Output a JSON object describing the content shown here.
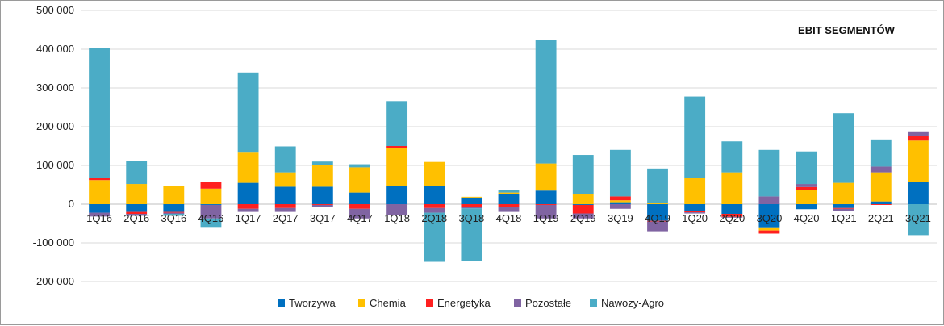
{
  "chart_data": {
    "type": "bar",
    "stacked": true,
    "title": "EBIT SEGMENTÓW",
    "categories": [
      "1Q16",
      "2Q16",
      "3Q16",
      "4Q16",
      "1Q17",
      "2Q17",
      "3Q17",
      "4Q17",
      "1Q18",
      "2Q18",
      "3Q18",
      "4Q18",
      "1Q19",
      "2Q19",
      "3Q19",
      "4Q19",
      "1Q20",
      "2Q20",
      "3Q20",
      "4Q20",
      "1Q21",
      "2Q21",
      "3Q21"
    ],
    "ylim": [
      -200000,
      500000
    ],
    "yticks": [
      -200000,
      -100000,
      0,
      100000,
      200000,
      300000,
      400000,
      500000
    ],
    "ytick_labels": [
      "-200 000",
      "-100 000",
      "0",
      "100 000",
      "200 000",
      "300 000",
      "400 000",
      "500 000"
    ],
    "grid": true,
    "legend_position": "bottom",
    "series": [
      {
        "name": "Tworzywa",
        "color": "#0070c0",
        "values": [
          -22000,
          -20000,
          -20000,
          -2000,
          55000,
          45000,
          45000,
          30000,
          47000,
          47000,
          17000,
          25000,
          35000,
          -2000,
          5000,
          -43000,
          -18000,
          -25000,
          -60000,
          -13000,
          -10000,
          7000,
          57000
        ]
      },
      {
        "name": "Chemia",
        "color": "#ffc000",
        "values": [
          62000,
          52000,
          46000,
          40000,
          80000,
          37000,
          57000,
          65000,
          97000,
          62000,
          2000,
          5000,
          70000,
          25000,
          5000,
          2000,
          68000,
          82000,
          -8000,
          36000,
          55000,
          75000,
          107000
        ]
      },
      {
        "name": "Energetyka",
        "color": "#ff2020",
        "values": [
          5000,
          -5000,
          -2000,
          18000,
          -12000,
          -10000,
          -2000,
          -12000,
          6000,
          -10000,
          -8000,
          -8000,
          -2000,
          -22000,
          10000,
          -2000,
          -3000,
          -8000,
          -8000,
          8000,
          -2000,
          -2000,
          12000
        ]
      },
      {
        "name": "Pozostałe",
        "color": "#8064a2",
        "values": [
          -10000,
          -5000,
          -3000,
          -35000,
          -8000,
          -10000,
          -5000,
          -25000,
          -28000,
          -12000,
          -3000,
          -12000,
          -35000,
          -13000,
          -12000,
          -25000,
          -3000,
          -2000,
          20000,
          8000,
          -5000,
          15000,
          12000
        ]
      },
      {
        "name": "Nawozy-Agro",
        "color": "#4bacc6",
        "values": [
          336000,
          60000,
          -5000,
          -22000,
          205000,
          67000,
          8000,
          8000,
          116000,
          -127000,
          -136000,
          7000,
          320000,
          102000,
          120000,
          90000,
          210000,
          80000,
          120000,
          84000,
          180000,
          70000,
          -80000
        ]
      }
    ]
  }
}
